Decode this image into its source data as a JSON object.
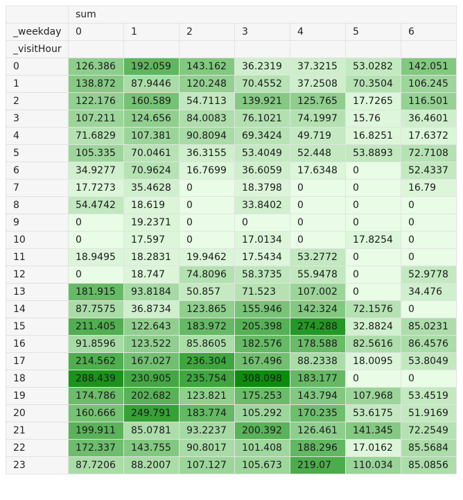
{
  "header": {
    "aggregate_label": "sum",
    "column_field": "_weekday",
    "row_field": "_visitHour",
    "columns": [
      "0",
      "1",
      "2",
      "3",
      "4",
      "5",
      "6"
    ]
  },
  "rows": [
    {
      "hour": "0",
      "values": [
        "126.386",
        "192.059",
        "143.162",
        "36.2319",
        "37.3215",
        "53.0282",
        "142.051"
      ]
    },
    {
      "hour": "1",
      "values": [
        "138.872",
        "87.9446",
        "120.248",
        "70.4552",
        "37.2508",
        "70.3504",
        "106.245"
      ]
    },
    {
      "hour": "2",
      "values": [
        "122.176",
        "160.589",
        "54.7113",
        "139.921",
        "125.765",
        "17.7265",
        "116.501"
      ]
    },
    {
      "hour": "3",
      "values": [
        "107.211",
        "124.656",
        "84.0083",
        "76.1021",
        "74.1997",
        "15.76",
        "36.4601"
      ]
    },
    {
      "hour": "4",
      "values": [
        "71.6829",
        "107.381",
        "90.8094",
        "69.3424",
        "49.719",
        "16.8251",
        "17.6372"
      ]
    },
    {
      "hour": "5",
      "values": [
        "105.335",
        "70.0461",
        "36.3155",
        "53.4049",
        "52.448",
        "53.8893",
        "72.7108"
      ]
    },
    {
      "hour": "6",
      "values": [
        "34.9277",
        "70.9624",
        "16.7699",
        "36.6059",
        "17.6348",
        "0",
        "52.4337"
      ]
    },
    {
      "hour": "7",
      "values": [
        "17.7273",
        "35.4628",
        "0",
        "18.3798",
        "0",
        "0",
        "16.79"
      ]
    },
    {
      "hour": "8",
      "values": [
        "54.4742",
        "18.619",
        "0",
        "33.8402",
        "0",
        "0",
        "0"
      ]
    },
    {
      "hour": "9",
      "values": [
        "0",
        "19.2371",
        "0",
        "0",
        "0",
        "0",
        "0"
      ]
    },
    {
      "hour": "10",
      "values": [
        "0",
        "17.597",
        "0",
        "17.0134",
        "0",
        "17.8254",
        "0"
      ]
    },
    {
      "hour": "11",
      "values": [
        "18.9495",
        "18.2831",
        "19.9462",
        "17.5434",
        "53.2772",
        "0",
        "0"
      ]
    },
    {
      "hour": "12",
      "values": [
        "0",
        "18.747",
        "74.8096",
        "58.3735",
        "55.9478",
        "0",
        "52.9778"
      ]
    },
    {
      "hour": "13",
      "values": [
        "181.915",
        "93.8184",
        "50.857",
        "71.523",
        "107.002",
        "0",
        "34.476"
      ]
    },
    {
      "hour": "14",
      "values": [
        "87.7575",
        "36.8734",
        "123.865",
        "155.946",
        "142.324",
        "72.1576",
        "0"
      ]
    },
    {
      "hour": "15",
      "values": [
        "211.405",
        "122.643",
        "183.972",
        "205.398",
        "274.288",
        "32.8824",
        "85.0231"
      ]
    },
    {
      "hour": "16",
      "values": [
        "91.8596",
        "123.522",
        "85.8605",
        "182.576",
        "178.588",
        "82.5616",
        "86.4576"
      ]
    },
    {
      "hour": "17",
      "values": [
        "214.562",
        "167.027",
        "236.304",
        "167.496",
        "88.2338",
        "18.0095",
        "53.8049"
      ]
    },
    {
      "hour": "18",
      "values": [
        "288.439",
        "230.905",
        "235.754",
        "308.098",
        "183.177",
        "0",
        "0"
      ]
    },
    {
      "hour": "19",
      "values": [
        "174.786",
        "202.682",
        "123.821",
        "175.253",
        "143.794",
        "107.968",
        "53.4519"
      ]
    },
    {
      "hour": "20",
      "values": [
        "160.666",
        "249.791",
        "183.774",
        "105.292",
        "170.235",
        "53.6175",
        "51.9169"
      ]
    },
    {
      "hour": "21",
      "values": [
        "199.911",
        "85.0781",
        "93.2237",
        "200.392",
        "126.461",
        "141.345",
        "72.2549"
      ]
    },
    {
      "hour": "22",
      "values": [
        "172.337",
        "143.755",
        "90.8017",
        "101.408",
        "188.296",
        "17.0162",
        "85.5684"
      ]
    },
    {
      "hour": "23",
      "values": [
        "87.7206",
        "88.2007",
        "107.127",
        "105.673",
        "219.07",
        "110.034",
        "85.0856"
      ]
    }
  ],
  "colors": {
    "scale_low": "#e9fce6",
    "scale_high": "#0c8c0c",
    "header_bg": "#f6f6f6",
    "grid_line": "#e2e2e2"
  }
}
